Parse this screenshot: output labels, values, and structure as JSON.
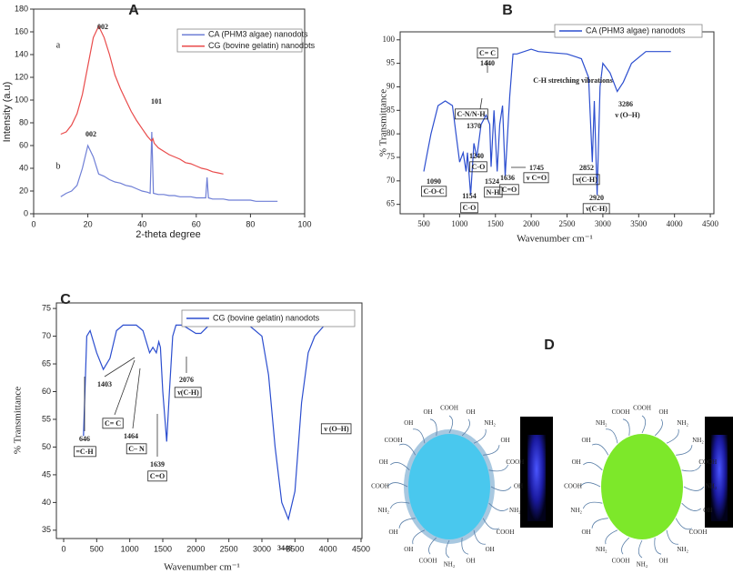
{
  "chart_data": [
    {
      "type": "line",
      "panel": "A",
      "xlabel": "2-theta degree",
      "ylabel": "Intensity (a.u)",
      "xlim": [
        0,
        100
      ],
      "ylim": [
        0,
        180
      ],
      "xticks": [
        0,
        20,
        40,
        60,
        80,
        100
      ],
      "yticks": [
        0,
        20,
        40,
        60,
        80,
        100,
        120,
        140,
        160,
        180
      ],
      "series": [
        {
          "name": "CA (PHM3 algae) nanodots",
          "color": "#6f7fd6",
          "x": [
            10,
            12,
            14,
            16,
            18,
            20,
            22,
            24,
            26,
            28,
            30,
            32,
            34,
            36,
            38,
            40,
            42,
            43,
            43.6,
            44.2,
            46,
            48,
            50,
            52,
            54,
            56,
            58,
            60,
            62,
            63.5,
            64,
            64.5,
            66,
            68,
            70,
            72,
            74,
            76,
            78,
            80,
            82,
            84,
            86,
            88,
            90
          ],
          "values": [
            15,
            18,
            20,
            25,
            40,
            60,
            50,
            35,
            33,
            30,
            28,
            27,
            25,
            24,
            22,
            20,
            19,
            18,
            72,
            18,
            17,
            17,
            16,
            16,
            15,
            15,
            15,
            14,
            14,
            14,
            32,
            14,
            13,
            13,
            13,
            12,
            12,
            12,
            12,
            12,
            11,
            11,
            11,
            11,
            11
          ]
        },
        {
          "name": "CG (bovine gelatin) nanodots",
          "color": "#e94b4b",
          "x": [
            10,
            12,
            14,
            16,
            18,
            20,
            22,
            24,
            26,
            28,
            30,
            32,
            34,
            36,
            38,
            40,
            42,
            43.5,
            44,
            44.5,
            46,
            48,
            50,
            52,
            54,
            56,
            58,
            60,
            62,
            64,
            66,
            68,
            70
          ],
          "values": [
            70,
            72,
            78,
            88,
            105,
            130,
            155,
            165,
            155,
            140,
            122,
            110,
            100,
            90,
            82,
            75,
            68,
            64,
            66,
            62,
            58,
            55,
            52,
            50,
            48,
            45,
            44,
            42,
            40,
            39,
            37,
            36,
            35
          ]
        }
      ],
      "annotations": [
        "002",
        "101",
        "002",
        "a",
        "b"
      ]
    },
    {
      "type": "line",
      "panel": "B",
      "xlabel": "Wavenumber cm⁻¹",
      "ylabel": "% Transmittance",
      "xlim": [
        170,
        4550
      ],
      "ylim": [
        63,
        101.7
      ],
      "xticks": [
        500,
        1000,
        1500,
        2000,
        2500,
        3000,
        3500,
        4000,
        4500
      ],
      "yticks": [
        65,
        70,
        75,
        80,
        85,
        90,
        95,
        100
      ],
      "series": [
        {
          "name": "CA (PHM3 algae) nanodots",
          "color": "#2c4ecf",
          "x": [
            500,
            550,
            600,
            700,
            800,
            900,
            950,
            1000,
            1050,
            1090,
            1110,
            1154,
            1200,
            1240,
            1300,
            1370,
            1420,
            1440,
            1480,
            1524,
            1560,
            1600,
            1636,
            1700,
            1745,
            1800,
            2000,
            2100,
            2500,
            2700,
            2800,
            2852,
            2880,
            2920,
            2960,
            3000,
            3100,
            3200,
            3286,
            3400,
            3600,
            3800,
            3950
          ],
          "values": [
            72,
            76,
            80,
            86,
            87,
            86,
            80,
            74,
            76,
            72,
            76,
            67,
            78,
            75,
            82,
            84,
            82,
            73,
            85,
            72,
            82,
            86,
            71,
            88,
            97,
            97,
            98,
            97.5,
            97,
            96,
            92,
            74,
            87,
            67,
            90,
            95,
            93,
            89,
            91,
            95,
            97.5,
            97.5,
            97.5
          ]
        }
      ],
      "annotations": [
        "1090",
        "C-O-C",
        "1154",
        "C-O",
        "1240",
        "C-O",
        "1370",
        "C-N/N-H",
        "1440",
        "C= C",
        "1524",
        "N-H",
        "1636",
        "C=O",
        "1745",
        "ν C=O",
        "C-H stretching vibrations",
        "2852",
        "ν(C-H)",
        "2920",
        "ν(C-H)",
        "3286",
        "ν (O–H)"
      ]
    },
    {
      "type": "line",
      "panel": "C",
      "xlabel": "Wavenumber cm⁻¹",
      "ylabel": "% Transmittance",
      "xlim": [
        -110,
        4514
      ],
      "ylim": [
        33.5,
        76
      ],
      "xticks": [
        0,
        500,
        1000,
        1500,
        2000,
        2500,
        3000,
        3500,
        4000,
        4500
      ],
      "yticks": [
        35,
        40,
        45,
        50,
        55,
        60,
        65,
        70,
        75
      ],
      "series": [
        {
          "name": "CG (bovine gelatin) nanodots",
          "color": "#2c4ecf",
          "x": [
            300,
            350,
            400,
            500,
            600,
            700,
            800,
            900,
            1000,
            1100,
            1200,
            1300,
            1350,
            1403,
            1440,
            1464,
            1500,
            1560,
            1600,
            1650,
            1700,
            1800,
            2000,
            2076,
            2200,
            2500,
            2800,
            3000,
            3100,
            3200,
            3300,
            3400,
            3500,
            3600,
            3700,
            3800,
            3950
          ],
          "values": [
            52,
            70,
            71,
            67,
            64,
            66,
            71,
            72,
            72,
            72,
            71,
            67,
            68,
            67,
            69,
            68,
            60,
            51,
            60,
            70,
            72,
            72,
            70.5,
            70.5,
            72,
            72,
            72,
            70,
            63,
            50,
            40,
            37,
            42,
            58,
            67,
            70,
            72
          ]
        }
      ],
      "annotations": [
        "646",
        "=C-H",
        "1403",
        "C= C",
        "1464",
        "C– N",
        "1639",
        "C=O",
        "2076",
        "ν(C-H)",
        "3446",
        "ν (O–H)"
      ]
    }
  ],
  "panel_d": {
    "label": "D",
    "left_groups": [
      "COOH",
      "OH",
      "NH₂",
      "OH",
      "COOH",
      "OH",
      "NH₂",
      "COOH",
      "OH",
      "OH",
      "NH₂",
      "COOH",
      "OH",
      "OH",
      "NH₂",
      "COOH",
      "OH",
      "COOH",
      "OH",
      "OH"
    ],
    "right_groups": [
      "COOH",
      "OH",
      "NH₂",
      "NH₂",
      "COOH",
      "NH₂",
      "OH",
      "COOH",
      "NH₂",
      "OH",
      "NH₂",
      "COOH",
      "NH₂",
      "OH",
      "NH₂",
      "COOH",
      "OH",
      "OH",
      "NH₂",
      "COOH"
    ]
  }
}
